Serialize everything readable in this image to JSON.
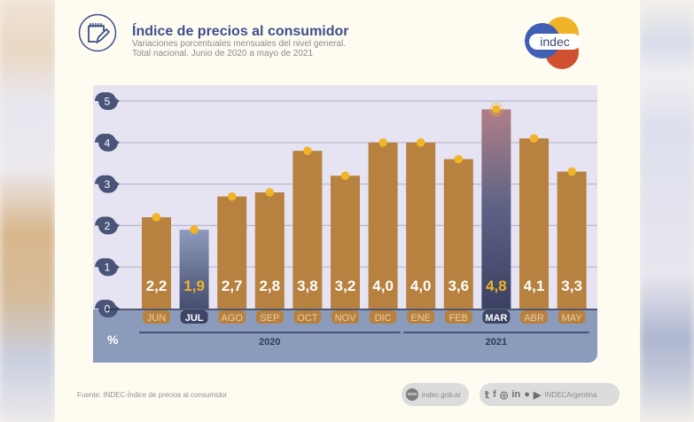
{
  "header": {
    "title": "Índice de precios al consumidor",
    "subtitle_line1": "Variaciones porcentuales mensuales del nivel general.",
    "subtitle_line2": "Total nacional. Junio de 2020 a mayo de 2021",
    "logo_text": "indec",
    "icon": "notepad-pencil-icon"
  },
  "colors": {
    "bar": "#b7813f",
    "highlight_bar_top": "#8a90b0",
    "highlight_bar_bottom": "#3f4668",
    "max_bar_top": "#b07e86",
    "dot": "#f0b426",
    "axis_badge": "#4a5378",
    "title": "#3e4f8c",
    "logo_blue": "#3f5fb5",
    "logo_yellow": "#f0b429",
    "logo_red": "#d0512f"
  },
  "chart_data": {
    "type": "bar",
    "title": "Índice de precios al consumidor",
    "xlabel": "",
    "ylabel": "%",
    "ylim": [
      0,
      5
    ],
    "yticks": [
      0,
      1,
      2,
      3,
      4,
      5
    ],
    "grid": true,
    "categories": [
      "JUN",
      "JUL",
      "AGO",
      "SEP",
      "OCT",
      "NOV",
      "DIC",
      "ENE",
      "FEB",
      "MAR",
      "ABR",
      "MAY"
    ],
    "values": [
      2.2,
      1.9,
      2.7,
      2.8,
      3.8,
      3.2,
      4.0,
      4.0,
      3.6,
      4.8,
      4.1,
      3.3
    ],
    "value_labels": [
      "2,2",
      "1,9",
      "2,7",
      "2,8",
      "3,8",
      "3,2",
      "4,0",
      "4,0",
      "3,6",
      "4,8",
      "4,1",
      "3,3"
    ],
    "highlighted": [
      "JUL",
      "MAR"
    ],
    "year_groups": [
      {
        "label": "2020",
        "from": "JUN",
        "to": "DIC"
      },
      {
        "label": "2021",
        "from": "ENE",
        "to": "MAY"
      }
    ],
    "unit_label": "%"
  },
  "footer": {
    "source": "Fuente: INDEC-Índice de precios al consumidor",
    "website": "indec.gob.ar",
    "www_label": "www",
    "social_handle": "INDECArgentina",
    "social_icons": [
      "twitter-icon",
      "facebook-icon",
      "instagram-icon",
      "linkedin-icon",
      "spotify-icon",
      "youtube-icon"
    ]
  }
}
